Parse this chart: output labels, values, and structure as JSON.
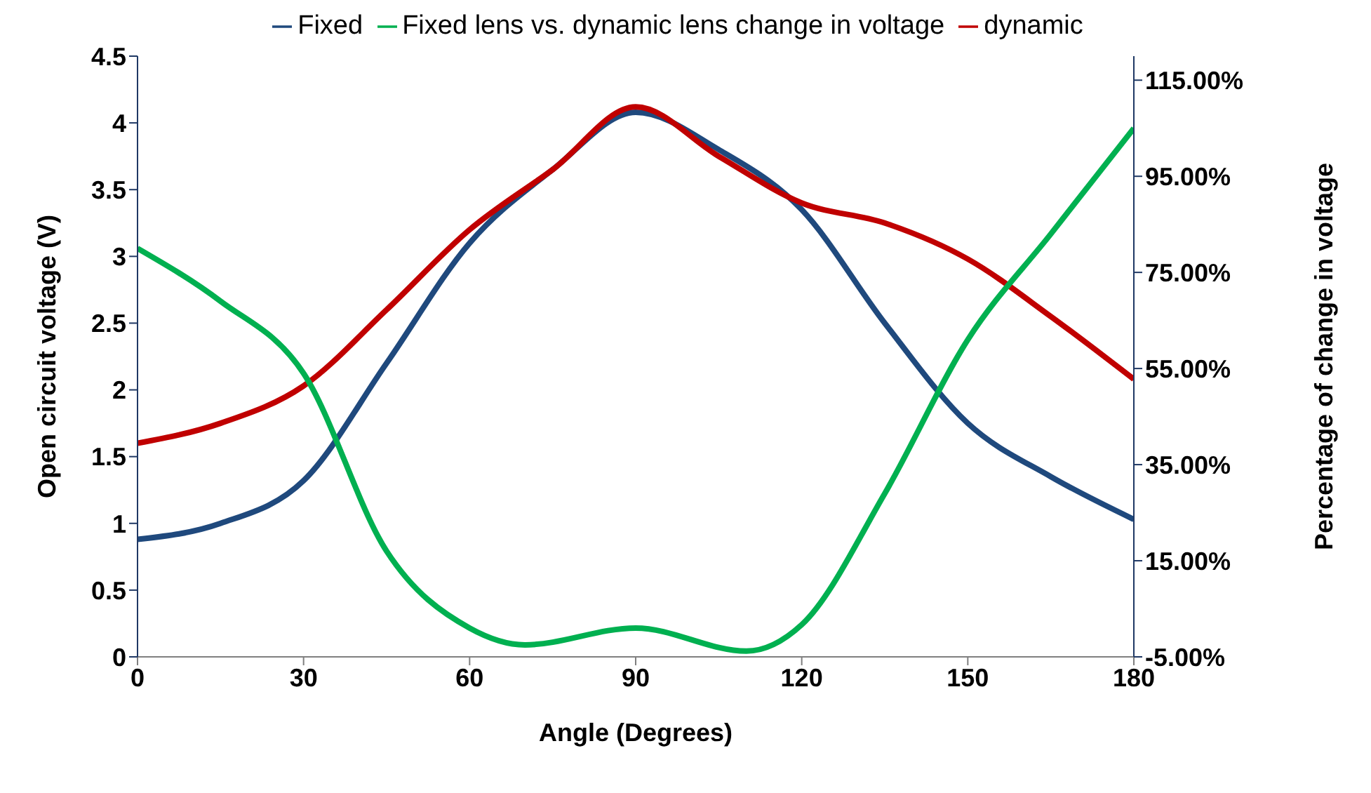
{
  "chart_data": {
    "type": "line",
    "xlabel": "Angle (Degrees)",
    "ylabel": "Open circuit voltage (V)",
    "y2label": "Percentage of change in voltage",
    "x": [
      0,
      15,
      30,
      45,
      60,
      75,
      90,
      105,
      120,
      135,
      150,
      165,
      180
    ],
    "series": [
      {
        "name": "Fixed",
        "color": "#1f497d",
        "values": [
          0.88,
          1.0,
          1.32,
          2.2,
          3.1,
          3.65,
          4.08,
          3.8,
          3.35,
          2.5,
          1.75,
          1.35,
          1.03
        ]
      },
      {
        "name": "dynamic",
        "color": "#c00000",
        "values": [
          1.6,
          1.75,
          2.03,
          2.6,
          3.2,
          3.65,
          4.12,
          3.75,
          3.4,
          3.25,
          2.98,
          2.55,
          2.08
        ]
      },
      {
        "name": "Fixed lens vs. dynamic lens change in voltage",
        "color": "#00b050",
        "axis": "y2",
        "x": [
          0,
          15,
          30,
          45,
          60,
          70,
          90,
          110,
          120,
          135,
          150,
          165,
          180
        ],
        "values": [
          80,
          69,
          54,
          17,
          1,
          -2.5,
          1,
          -3.8,
          1.7,
          29,
          61,
          83,
          105
        ]
      }
    ],
    "xlim": [
      0,
      180
    ],
    "xticks": [
      0,
      30,
      60,
      90,
      120,
      150,
      180
    ],
    "ylim": [
      0,
      4.5
    ],
    "yticks": [
      0,
      0.5,
      1,
      1.5,
      2,
      2.5,
      3,
      3.5,
      4,
      4.5
    ],
    "y2lim": [
      -5,
      120
    ],
    "y2ticks": [
      {
        "value": -5,
        "label": "-5.00%"
      },
      {
        "value": 15,
        "label": "15.00%"
      },
      {
        "value": 35,
        "label": "35.00%"
      },
      {
        "value": 55,
        "label": "55.00%"
      },
      {
        "value": 75,
        "label": "75.00%"
      },
      {
        "value": 95,
        "label": "95.00%"
      },
      {
        "value": 115,
        "label": "115.00%"
      }
    ],
    "legend": "top",
    "grid": false,
    "marker": "none",
    "line_style": "solid"
  }
}
